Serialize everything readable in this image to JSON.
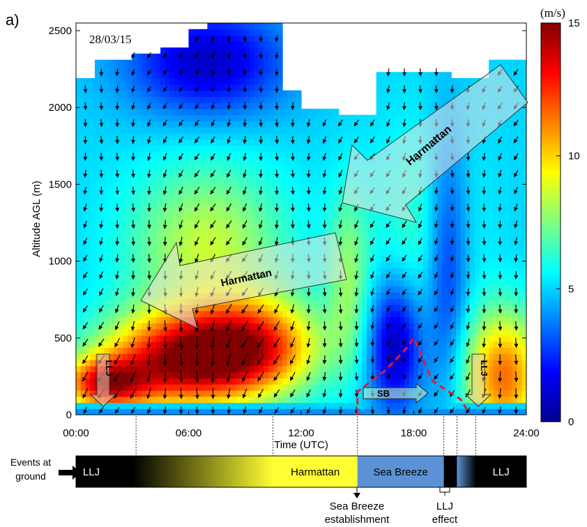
{
  "panel_label": "a)",
  "chart_data": {
    "type": "heatmap",
    "title": "",
    "date_label": "28/03/15",
    "xlabel": "Time (UTC)",
    "ylabel": "Altitude AGL (m)",
    "xlim": [
      0,
      24
    ],
    "ylim": [
      0,
      2550
    ],
    "x_ticks": [
      0,
      6,
      12,
      18,
      24
    ],
    "x_tick_labels": [
      "00:00",
      "06:00",
      "12:00",
      "18:00",
      "24:00"
    ],
    "y_ticks": [
      0,
      500,
      1000,
      1500,
      2000,
      2500
    ],
    "y_tick_labels": [
      "0",
      "500",
      "1000",
      "1500",
      "2000",
      "2500"
    ],
    "colorbar": {
      "unit": "(m/s)",
      "min": 0,
      "max": 15,
      "ticks": [
        0,
        5,
        10,
        15
      ],
      "tick_labels": [
        "0",
        "5",
        "10",
        "15"
      ],
      "colormap": "jet"
    },
    "data_top_altitude": [
      [
        0,
        2200
      ],
      [
        1,
        2300
      ],
      [
        3,
        2340
      ],
      [
        4.5,
        2400
      ],
      [
        6,
        2500
      ],
      [
        7,
        2550
      ],
      [
        11,
        2550
      ],
      [
        12,
        2100
      ],
      [
        14,
        2000
      ],
      [
        15,
        1950
      ],
      [
        16,
        2250
      ],
      [
        17,
        2250
      ],
      [
        18,
        2300
      ],
      [
        20,
        2250
      ],
      [
        21,
        2200
      ],
      [
        22,
        2300
      ],
      [
        24,
        2300
      ]
    ],
    "wind_speed_features": [
      {
        "x": 5.5,
        "y": 350,
        "sx": 3.0,
        "sy": 220,
        "amp": 8.5
      },
      {
        "x": 9.5,
        "y": 450,
        "sx": 2.5,
        "sy": 220,
        "amp": 6.5
      },
      {
        "x": 1.5,
        "y": 200,
        "sx": 1.6,
        "sy": 120,
        "amp": 7.0
      },
      {
        "x": 22.8,
        "y": 250,
        "sx": 1.5,
        "sy": 300,
        "amp": 6.5
      },
      {
        "x": 7.0,
        "y": 1100,
        "sx": 3.0,
        "sy": 380,
        "amp": 3.5
      },
      {
        "x": 14.5,
        "y": 900,
        "sx": 0.8,
        "sy": 400,
        "amp": 2.5
      },
      {
        "x": 17.0,
        "y": 450,
        "sx": 1.0,
        "sy": 300,
        "amp": -4.5
      },
      {
        "x": 19.8,
        "y": 1000,
        "sx": 0.8,
        "sy": 600,
        "amp": -3.0
      },
      {
        "x": 7.0,
        "y": 2300,
        "sx": 3.0,
        "sy": 250,
        "amp": -4.0
      },
      {
        "x": 13.0,
        "y": 2450,
        "sx": 0.6,
        "sy": 100,
        "amp": -3.0
      },
      {
        "x": 18.5,
        "y": 1200,
        "sx": 2.0,
        "sy": 500,
        "amp": 1.5
      }
    ],
    "wind_speed_base": 5.0,
    "annotations": {
      "harmattan_upper": "Harmattan",
      "harmattan_lower": "Harmattan",
      "sb": "SB",
      "llj_left": "LLJ",
      "llj_right": "LLJ"
    },
    "sea_breeze_front": [
      [
        15,
        0
      ],
      [
        15,
        150
      ],
      [
        16.5,
        290
      ],
      [
        17.6,
        430
      ],
      [
        18.0,
        500
      ],
      [
        19.0,
        220
      ],
      [
        20.5,
        100
      ],
      [
        21.0,
        0
      ]
    ]
  },
  "events_bar": {
    "label_line1": "Events at",
    "label_line2": "ground",
    "segments": [
      {
        "label": "LLJ",
        "start": 0,
        "end": 3,
        "color": "#000000"
      },
      {
        "label": "",
        "start": 3,
        "end": 10.5,
        "color": "gradient-black-yellow"
      },
      {
        "label": "Harmattan",
        "start": 10.5,
        "end": 15,
        "color": "#ffff33"
      },
      {
        "label": "Sea Breeze",
        "start": 15,
        "end": 19.6,
        "color": "#5b92d6"
      },
      {
        "label": "",
        "start": 19.6,
        "end": 20.3,
        "color": "#000000"
      },
      {
        "label": "",
        "start": 20.3,
        "end": 21.3,
        "color": "gradient-blue-black"
      },
      {
        "label": "LLJ",
        "start": 21.3,
        "end": 24,
        "color": "#000000"
      }
    ],
    "callout_sea_breeze_line1": "Sea Breeze",
    "callout_sea_breeze_line2": "establishment",
    "callout_llj_line1": "LLJ",
    "callout_llj_line2": "effect"
  },
  "colors": {
    "front_line": "#e8192c",
    "arrow_fill": "rgba(230,230,230,0.55)",
    "harmattan_yellow": "#ffff33",
    "sea_breeze_blue": "#5b92d6"
  }
}
